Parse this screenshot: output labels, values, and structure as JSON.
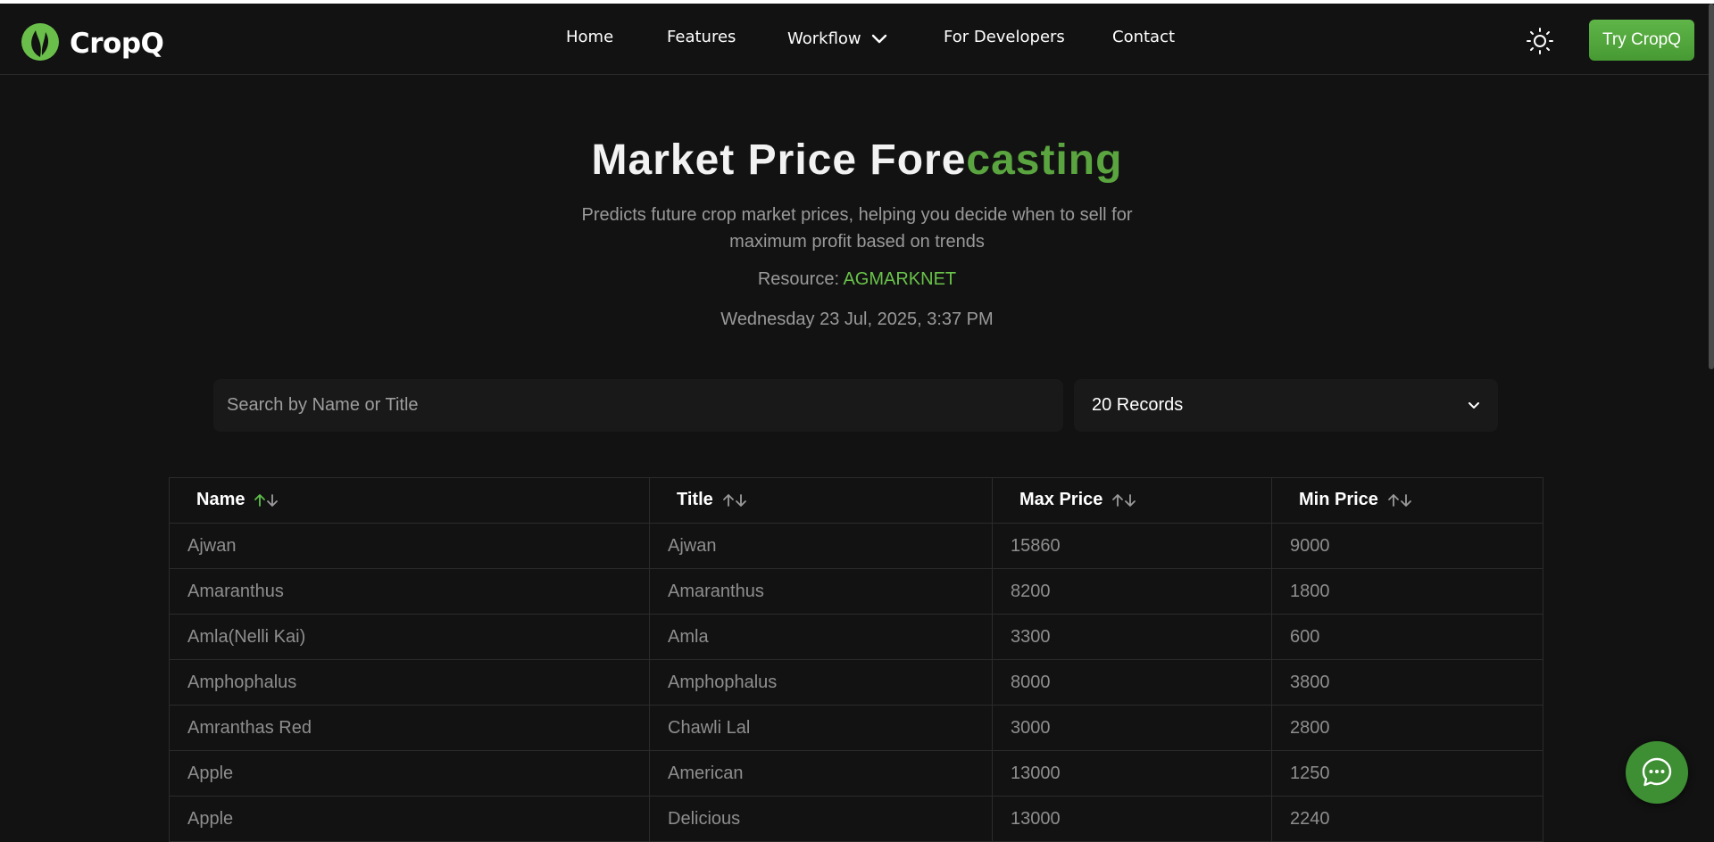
{
  "brand": {
    "name": "CropQ",
    "accent": "#5aa53f"
  },
  "nav": {
    "home": "Home",
    "features": "Features",
    "workflow": "Workflow",
    "developers": "For Developers",
    "contact": "Contact",
    "cta": "Try CropQ"
  },
  "hero": {
    "title_main": "Market Price Fore",
    "title_accent": "casting",
    "subtitle": "Predicts future crop market prices, helping you decide when to sell for maximum profit based on trends",
    "resource_label": "Resource:",
    "resource_link": "AGMARKNET",
    "datetime": "Wednesday 23 Jul, 2025, 3:37 PM"
  },
  "controls": {
    "search_placeholder": "Search by Name or Title",
    "records_selected": "20 Records"
  },
  "table": {
    "columns": [
      "Name",
      "Title",
      "Max Price",
      "Min Price"
    ],
    "sorted_column": "Name",
    "sort_direction": "ascending",
    "rows": [
      [
        "Ajwan",
        "Ajwan",
        "15860",
        "9000"
      ],
      [
        "Amaranthus",
        "Amaranthus",
        "8200",
        "1800"
      ],
      [
        "Amla(Nelli Kai)",
        "Amla",
        "3300",
        "600"
      ],
      [
        "Amphophalus",
        "Amphophalus",
        "8000",
        "3800"
      ],
      [
        "Amranthas Red",
        "Chawli Lal",
        "3000",
        "2800"
      ],
      [
        "Apple",
        "American",
        "13000",
        "1250"
      ],
      [
        "Apple",
        "Delicious",
        "13000",
        "2240"
      ]
    ]
  },
  "icons": {
    "logo": "leaf-logo-icon",
    "workflow_chevron": "chevron-down-icon",
    "theme": "sun-icon",
    "select_chevron": "chevron-down-icon",
    "chat": "chat-bubble-icon"
  }
}
